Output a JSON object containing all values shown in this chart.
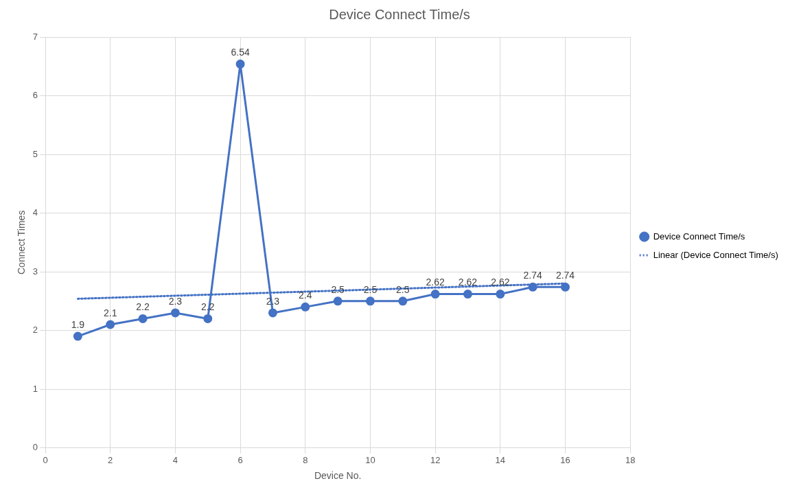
{
  "chart_data": {
    "type": "line",
    "title": "Device Connect Time/s",
    "xlabel": "Device No.",
    "ylabel": "Connect Times",
    "xlim": [
      0,
      18
    ],
    "xticks": [
      0,
      2,
      4,
      6,
      8,
      10,
      12,
      14,
      16,
      18
    ],
    "ylim": [
      0,
      7
    ],
    "yticks": [
      0,
      1,
      2,
      3,
      4,
      5,
      6,
      7
    ],
    "grid": true,
    "legend": "right",
    "series": [
      {
        "name": "Device Connect Time/s",
        "color": "#4472c4",
        "marker": "circle",
        "line_style": "solid",
        "x": [
          1,
          2,
          3,
          4,
          5,
          6,
          7,
          8,
          9,
          10,
          11,
          12,
          13,
          14,
          15,
          16
        ],
        "values": [
          1.9,
          2.1,
          2.2,
          2.3,
          2.2,
          6.54,
          2.3,
          2.4,
          2.5,
          2.5,
          2.5,
          2.62,
          2.62,
          2.62,
          2.74,
          2.74
        ],
        "value_labels": [
          "1.9",
          "2.1",
          "2.2",
          "2.3",
          "2.2",
          "6.54",
          "2.3",
          "2.4",
          "2.5",
          "2.5",
          "2.5",
          "2.62",
          "2.62",
          "2.62",
          "2.74",
          "2.74"
        ]
      },
      {
        "name": "Linear (Device Connect Time/s)",
        "type": "line",
        "color": "#4472c4",
        "marker": "none",
        "line_style": "dotted",
        "x": [
          1,
          16
        ],
        "values": [
          2.54,
          2.8
        ]
      }
    ]
  }
}
